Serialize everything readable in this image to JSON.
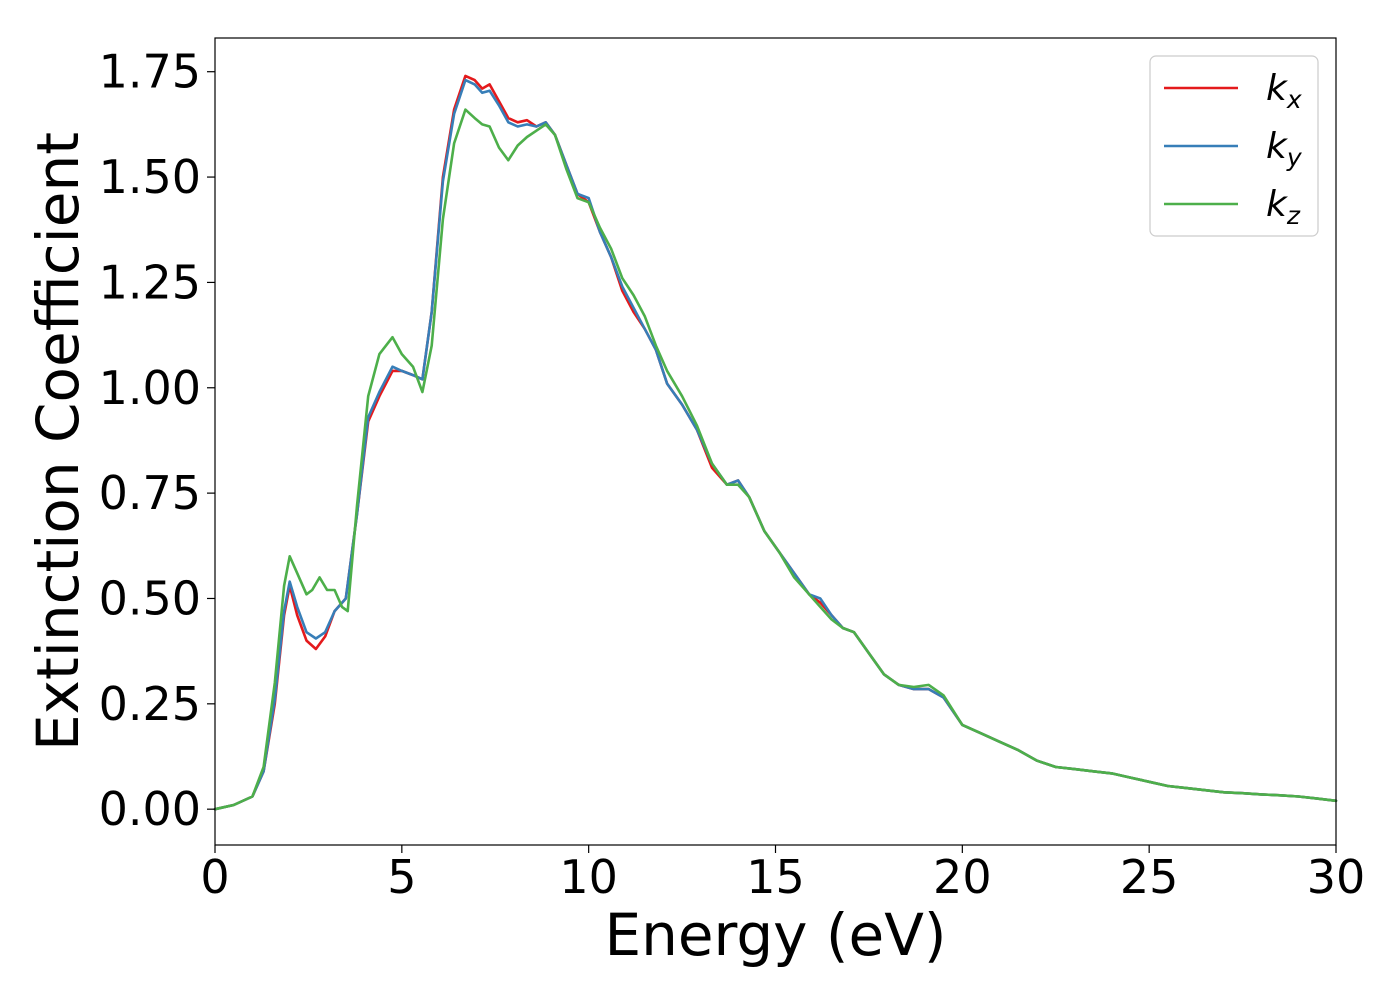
{
  "chart_data": {
    "type": "line",
    "title": "",
    "xlabel": "Energy (eV)",
    "ylabel": "Extinction Coefficient",
    "xlim": [
      0,
      30
    ],
    "ylim": [
      -0.085,
      1.83
    ],
    "x_ticks": [
      0,
      5,
      10,
      15,
      20,
      25,
      30
    ],
    "x_tick_labels": [
      "0",
      "5",
      "10",
      "15",
      "20",
      "25",
      "30"
    ],
    "y_ticks": [
      0.0,
      0.25,
      0.5,
      0.75,
      1.0,
      1.25,
      1.5,
      1.75
    ],
    "y_tick_labels": [
      "0.00",
      "0.25",
      "0.50",
      "0.75",
      "1.00",
      "1.25",
      "1.50",
      "1.75"
    ],
    "grid": false,
    "legend_position": "top-right",
    "series": [
      {
        "name": "kx",
        "legend_base": "k",
        "legend_sub": "x",
        "color": "#e41a1c",
        "x": [
          0,
          0.5,
          1.0,
          1.3,
          1.6,
          1.85,
          2.0,
          2.2,
          2.45,
          2.7,
          2.95,
          3.2,
          3.5,
          3.8,
          4.1,
          4.4,
          4.75,
          5.0,
          5.3,
          5.55,
          5.8,
          6.1,
          6.4,
          6.7,
          6.95,
          7.15,
          7.35,
          7.6,
          7.85,
          8.1,
          8.35,
          8.6,
          8.85,
          9.1,
          9.4,
          9.7,
          10.0,
          10.3,
          10.6,
          10.9,
          11.2,
          11.5,
          11.8,
          12.1,
          12.5,
          12.9,
          13.3,
          13.7,
          14.0,
          14.3,
          14.7,
          15.1,
          15.5,
          15.9,
          16.2,
          16.5,
          16.8,
          17.1,
          17.5,
          17.9,
          18.3,
          18.7,
          19.1,
          19.5,
          20.0,
          20.5,
          21.0,
          21.5,
          22.0,
          22.5,
          23.0,
          23.5,
          24.0,
          24.5,
          25.0,
          25.5,
          26.0,
          26.5,
          27.0,
          27.5,
          28.0,
          28.5,
          29.0,
          29.5,
          30.0
        ],
        "values": [
          0.0,
          0.01,
          0.03,
          0.09,
          0.25,
          0.46,
          0.53,
          0.46,
          0.4,
          0.38,
          0.41,
          0.47,
          0.5,
          0.7,
          0.92,
          0.98,
          1.04,
          1.04,
          1.03,
          1.02,
          1.18,
          1.5,
          1.66,
          1.74,
          1.73,
          1.71,
          1.72,
          1.68,
          1.64,
          1.63,
          1.635,
          1.62,
          1.63,
          1.6,
          1.53,
          1.46,
          1.44,
          1.37,
          1.31,
          1.23,
          1.18,
          1.14,
          1.09,
          1.01,
          0.96,
          0.9,
          0.81,
          0.77,
          0.78,
          0.74,
          0.66,
          0.61,
          0.56,
          0.51,
          0.49,
          0.46,
          0.43,
          0.42,
          0.37,
          0.32,
          0.295,
          0.285,
          0.285,
          0.265,
          0.2,
          0.18,
          0.16,
          0.14,
          0.115,
          0.1,
          0.095,
          0.09,
          0.085,
          0.075,
          0.065,
          0.055,
          0.05,
          0.045,
          0.04,
          0.038,
          0.035,
          0.033,
          0.03,
          0.025,
          0.02
        ]
      },
      {
        "name": "ky",
        "legend_base": "k",
        "legend_sub": "y",
        "color": "#377eb8",
        "x": [
          0,
          0.5,
          1.0,
          1.3,
          1.6,
          1.85,
          2.0,
          2.2,
          2.45,
          2.7,
          2.95,
          3.2,
          3.5,
          3.8,
          4.1,
          4.4,
          4.75,
          5.0,
          5.3,
          5.55,
          5.8,
          6.1,
          6.4,
          6.7,
          6.95,
          7.15,
          7.35,
          7.6,
          7.85,
          8.1,
          8.35,
          8.6,
          8.85,
          9.1,
          9.4,
          9.7,
          10.0,
          10.3,
          10.6,
          10.9,
          11.2,
          11.5,
          11.8,
          12.1,
          12.5,
          12.9,
          13.3,
          13.7,
          14.0,
          14.3,
          14.7,
          15.1,
          15.5,
          15.9,
          16.2,
          16.5,
          16.8,
          17.1,
          17.5,
          17.9,
          18.3,
          18.7,
          19.1,
          19.5,
          20.0,
          20.5,
          21.0,
          21.5,
          22.0,
          22.5,
          23.0,
          23.5,
          24.0,
          24.5,
          25.0,
          25.5,
          26.0,
          26.5,
          27.0,
          27.5,
          28.0,
          28.5,
          29.0,
          29.5,
          30.0
        ],
        "values": [
          0.0,
          0.01,
          0.03,
          0.09,
          0.26,
          0.47,
          0.54,
          0.48,
          0.42,
          0.405,
          0.42,
          0.47,
          0.5,
          0.7,
          0.93,
          0.99,
          1.05,
          1.04,
          1.03,
          1.02,
          1.18,
          1.49,
          1.65,
          1.73,
          1.72,
          1.7,
          1.705,
          1.67,
          1.63,
          1.62,
          1.625,
          1.62,
          1.63,
          1.6,
          1.53,
          1.46,
          1.45,
          1.37,
          1.31,
          1.24,
          1.19,
          1.14,
          1.09,
          1.01,
          0.96,
          0.9,
          0.82,
          0.77,
          0.78,
          0.74,
          0.66,
          0.61,
          0.56,
          0.51,
          0.5,
          0.46,
          0.43,
          0.42,
          0.37,
          0.32,
          0.295,
          0.285,
          0.285,
          0.265,
          0.2,
          0.18,
          0.16,
          0.14,
          0.115,
          0.1,
          0.095,
          0.09,
          0.085,
          0.075,
          0.065,
          0.055,
          0.05,
          0.045,
          0.04,
          0.038,
          0.035,
          0.033,
          0.03,
          0.025,
          0.02
        ]
      },
      {
        "name": "kz",
        "legend_base": "k",
        "legend_sub": "z",
        "color": "#4daf4a",
        "x": [
          0,
          0.5,
          1.0,
          1.3,
          1.6,
          1.85,
          2.0,
          2.2,
          2.45,
          2.6,
          2.8,
          3.0,
          3.2,
          3.4,
          3.55,
          3.8,
          4.1,
          4.4,
          4.75,
          5.0,
          5.3,
          5.55,
          5.8,
          6.1,
          6.4,
          6.7,
          6.95,
          7.15,
          7.35,
          7.6,
          7.85,
          8.1,
          8.35,
          8.6,
          8.85,
          9.1,
          9.4,
          9.7,
          10.0,
          10.3,
          10.6,
          10.9,
          11.2,
          11.5,
          11.8,
          12.1,
          12.5,
          12.9,
          13.3,
          13.7,
          14.0,
          14.3,
          14.7,
          15.1,
          15.5,
          15.9,
          16.2,
          16.5,
          16.8,
          17.1,
          17.5,
          17.9,
          18.3,
          18.7,
          19.1,
          19.5,
          20.0,
          20.5,
          21.0,
          21.5,
          22.0,
          22.5,
          23.0,
          23.5,
          24.0,
          24.5,
          25.0,
          25.5,
          26.0,
          26.5,
          27.0,
          27.5,
          28.0,
          28.5,
          29.0,
          29.5,
          30.0
        ],
        "values": [
          0.0,
          0.01,
          0.03,
          0.1,
          0.3,
          0.53,
          0.6,
          0.56,
          0.51,
          0.52,
          0.55,
          0.52,
          0.52,
          0.48,
          0.47,
          0.72,
          0.98,
          1.08,
          1.12,
          1.08,
          1.05,
          0.99,
          1.1,
          1.4,
          1.58,
          1.66,
          1.64,
          1.625,
          1.62,
          1.57,
          1.54,
          1.575,
          1.595,
          1.61,
          1.625,
          1.6,
          1.52,
          1.45,
          1.44,
          1.38,
          1.33,
          1.26,
          1.22,
          1.17,
          1.1,
          1.04,
          0.98,
          0.91,
          0.82,
          0.77,
          0.77,
          0.74,
          0.66,
          0.61,
          0.55,
          0.51,
          0.48,
          0.45,
          0.43,
          0.42,
          0.37,
          0.32,
          0.295,
          0.29,
          0.295,
          0.27,
          0.2,
          0.18,
          0.16,
          0.14,
          0.115,
          0.1,
          0.095,
          0.09,
          0.085,
          0.075,
          0.065,
          0.055,
          0.05,
          0.045,
          0.04,
          0.038,
          0.035,
          0.033,
          0.03,
          0.025,
          0.02
        ]
      }
    ]
  }
}
